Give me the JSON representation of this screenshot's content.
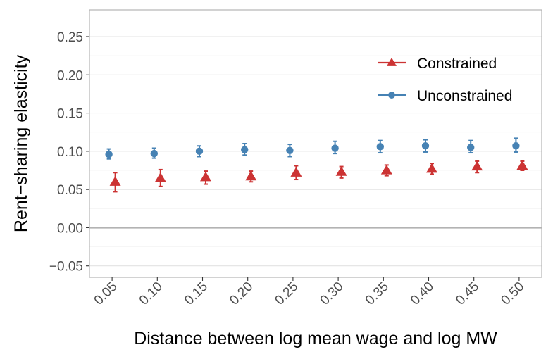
{
  "chart_data": {
    "type": "scatter",
    "xlabel": "Distance between log mean wage and log MW",
    "ylabel": "Rent−sharing elasticity",
    "categories": [
      "0.05",
      "0.10",
      "0.15",
      "0.20",
      "0.25",
      "0.30",
      "0.35",
      "0.40",
      "0.45",
      "0.50"
    ],
    "x": [
      0.05,
      0.1,
      0.15,
      0.2,
      0.25,
      0.3,
      0.35,
      0.4,
      0.45,
      0.5
    ],
    "xlim": [
      0.025,
      0.525
    ],
    "ylim": [
      -0.065,
      0.285
    ],
    "yticks": [
      -0.05,
      0.0,
      0.05,
      0.1,
      0.15,
      0.2,
      0.25
    ],
    "ytick_labels": [
      "−0.05",
      "0.00",
      "0.05",
      "0.10",
      "0.15",
      "0.20",
      "0.25"
    ],
    "reference_line_y": 0.0,
    "grid": true,
    "legend_position": "top-right",
    "series": [
      {
        "name": "Constrained",
        "marker": "triangle",
        "color": "#cc3333",
        "values": [
          0.06,
          0.065,
          0.066,
          0.067,
          0.072,
          0.073,
          0.075,
          0.077,
          0.08,
          0.081
        ],
        "lower": [
          0.047,
          0.054,
          0.057,
          0.06,
          0.063,
          0.065,
          0.068,
          0.07,
          0.072,
          0.075
        ],
        "upper": [
          0.072,
          0.076,
          0.074,
          0.074,
          0.081,
          0.08,
          0.082,
          0.084,
          0.087,
          0.087
        ]
      },
      {
        "name": "Unconstrained",
        "marker": "circle",
        "color": "#4682b4",
        "values": [
          0.096,
          0.097,
          0.1,
          0.102,
          0.101,
          0.104,
          0.106,
          0.107,
          0.105,
          0.107
        ],
        "lower": [
          0.09,
          0.091,
          0.093,
          0.095,
          0.093,
          0.097,
          0.098,
          0.099,
          0.098,
          0.099
        ],
        "upper": [
          0.103,
          0.104,
          0.107,
          0.11,
          0.109,
          0.113,
          0.114,
          0.115,
          0.114,
          0.117
        ]
      }
    ]
  }
}
